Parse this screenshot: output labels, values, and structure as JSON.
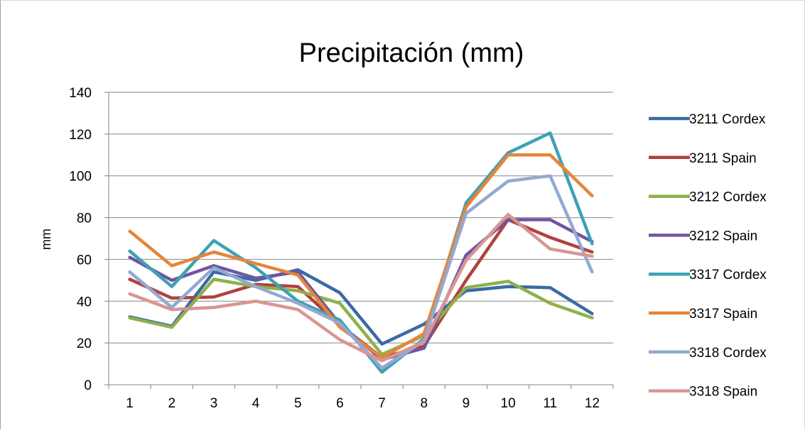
{
  "chart_data": {
    "type": "line",
    "title": "Precipitación (mm)",
    "xlabel": "",
    "ylabel": "mm",
    "categories": [
      "1",
      "2",
      "3",
      "4",
      "5",
      "6",
      "7",
      "8",
      "9",
      "10",
      "11",
      "12"
    ],
    "ylim": [
      0,
      140
    ],
    "yticks": [
      0,
      20,
      40,
      60,
      80,
      100,
      120,
      140
    ],
    "grid": true,
    "legend_position": "right",
    "series": [
      {
        "name": "3211 Cordex",
        "color": "#3a6aa5",
        "values": [
          32.5,
          28,
          54,
          50,
          55,
          44,
          19.5,
          29,
          45,
          47,
          46.5,
          34
        ]
      },
      {
        "name": "3211 Spain",
        "color": "#b0423f",
        "values": [
          50.5,
          41.5,
          42,
          48,
          47,
          28.5,
          13,
          18.5,
          50,
          79,
          70.5,
          63.5
        ]
      },
      {
        "name": "3212 Cordex",
        "color": "#8fb04a",
        "values": [
          32,
          27.5,
          50.5,
          47,
          45,
          39,
          14.5,
          23.5,
          46.5,
          49.5,
          39,
          32
        ]
      },
      {
        "name": "3212 Spain",
        "color": "#7056a0",
        "values": [
          61,
          50,
          57,
          51,
          54,
          29,
          12,
          17.5,
          62,
          79,
          79,
          68.5
        ]
      },
      {
        "name": "3317 Cordex",
        "color": "#3ea1b5",
        "values": [
          64,
          47,
          69,
          56,
          40,
          31,
          6,
          22,
          87,
          111,
          120.5,
          67.5
        ]
      },
      {
        "name": "3317 Spain",
        "color": "#e6853a",
        "values": [
          73.5,
          57,
          63.5,
          58,
          52.5,
          27.5,
          13,
          24.5,
          85,
          110,
          110,
          90.5
        ]
      },
      {
        "name": "3318 Cordex",
        "color": "#93a9d2",
        "values": [
          54,
          37,
          56,
          47,
          39,
          29.5,
          8,
          21,
          82,
          97.5,
          100,
          54
        ]
      },
      {
        "name": "3318 Spain",
        "color": "#d99593",
        "values": [
          43.5,
          36,
          37,
          40,
          36,
          21.5,
          11.5,
          20.5,
          59.5,
          81.5,
          65,
          61.5
        ]
      }
    ]
  }
}
